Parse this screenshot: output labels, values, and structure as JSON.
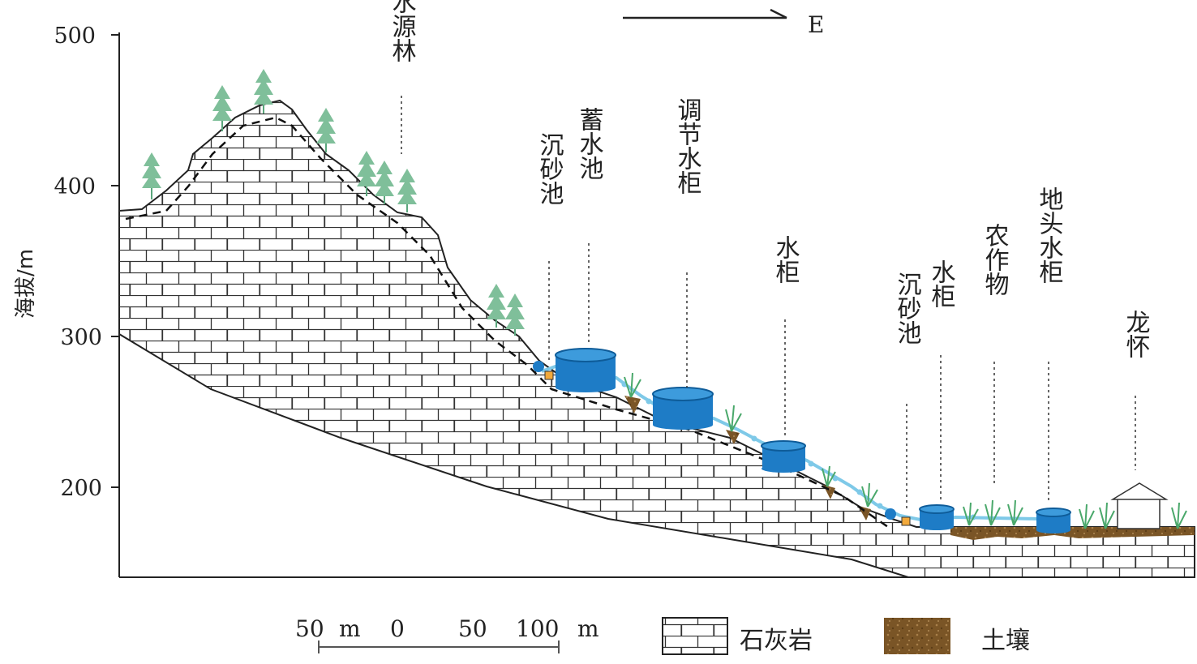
{
  "axis": {
    "ylabel": "海拔/m",
    "ticks": [
      "500",
      "400",
      "300",
      "200"
    ],
    "tick_values": [
      500,
      400,
      300,
      200
    ]
  },
  "direction": {
    "label": "E"
  },
  "labels": {
    "water_source_forest": "水源林",
    "sand_basin_1": "沉砂池",
    "storage_pool": "蓄水池",
    "regulating_tank": "调节水柜",
    "water_tank_1": "水柜",
    "sand_basin_2": "沉砂池",
    "water_tank_2": "水柜",
    "crops": "农作物",
    "field_tank": "地头水柜",
    "village": "龙怀"
  },
  "scale": {
    "labels": [
      "50",
      "m",
      "0",
      "50",
      "100",
      "m"
    ]
  },
  "legend": {
    "limestone": "石灰岩",
    "soil": "土壤"
  },
  "colors": {
    "tank_fill": "#1e7cc6",
    "tank_top": "#3d9bdc",
    "pipe": "#7ec9e8",
    "tree": "#7fbf9a",
    "soil": "#7a5526",
    "grass": "#4aa86b"
  }
}
